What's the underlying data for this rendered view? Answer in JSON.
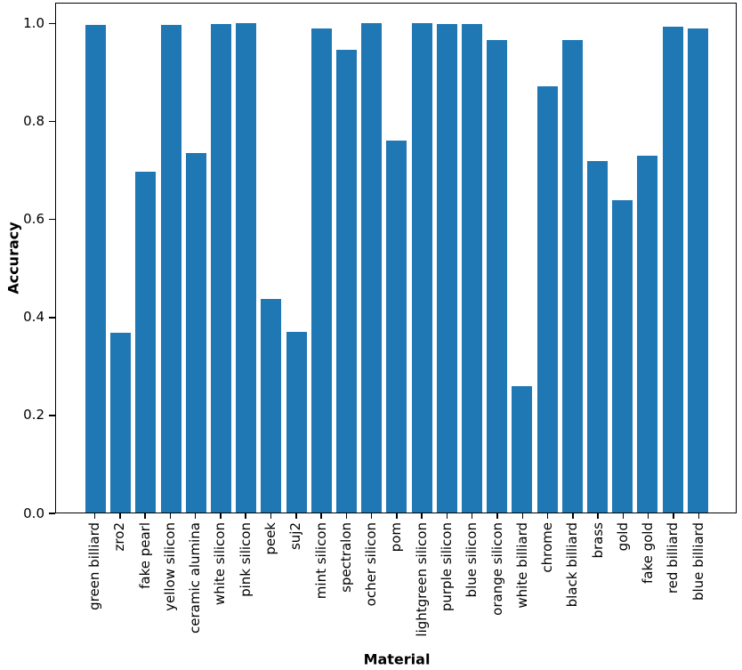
{
  "figure": {
    "background": "#ffffff",
    "axis_color": "#000000"
  },
  "chart_data": {
    "type": "bar",
    "title": "",
    "xlabel": "Material",
    "ylabel": "Accuracy",
    "bar_color": "#1f77b4",
    "grid": false,
    "legend": null,
    "ylim": [
      0,
      1.045
    ],
    "yticks": [
      0.0,
      0.2,
      0.4,
      0.6,
      0.8,
      1.0
    ],
    "ytick_labels": [
      "0.0",
      "0.2",
      "0.4",
      "0.6",
      "0.8",
      "1.0"
    ],
    "categories": [
      "green billiard",
      "zro2",
      "fake pearl",
      "yellow silicon",
      "ceramic alumina",
      "white silicon",
      "pink silicon",
      "peek",
      "suj2",
      "mint silicon",
      "spectralon",
      "ocher silicon",
      "pom",
      "lightgreen silicon",
      "purple silicon",
      "blue silicon",
      "orange silicon",
      "white billiard",
      "chrome",
      "black billiard",
      "brass",
      "gold",
      "fake gold",
      "red billiard",
      "blue billiard"
    ],
    "values": [
      0.995,
      0.367,
      0.696,
      0.996,
      0.734,
      0.998,
      1.0,
      0.436,
      0.368,
      0.989,
      0.945,
      1.0,
      0.759,
      1.0,
      0.998,
      0.997,
      0.965,
      0.258,
      0.871,
      0.965,
      0.718,
      0.638,
      0.729,
      0.992,
      0.989
    ]
  }
}
